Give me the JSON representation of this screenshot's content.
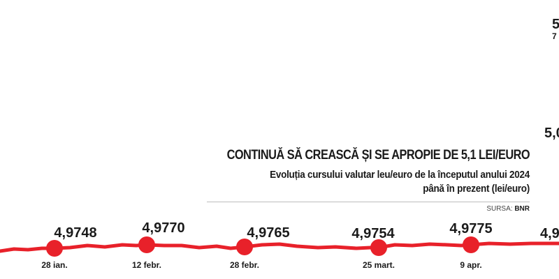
{
  "chart_data": {
    "type": "line",
    "title": "CONTINUĂ SĂ CREASCĂ ȘI SE APROPIE DE 5,1 LEI/EURO",
    "subtitle_line1": "Evoluția cursului valutar leu/euro de la începutul anului 2024",
    "subtitle_line2": "până în prezent (lei/euro)",
    "source_label": "SURSA:",
    "source_name": "BNR",
    "series_color": "#e8212a",
    "points": [
      {
        "date": "28 ian.",
        "value": 4.9748,
        "label": "4,9748"
      },
      {
        "date": "12 febr.",
        "value": 4.977,
        "label": "4,9770"
      },
      {
        "date": "28 febr.",
        "value": 4.9765,
        "label": "4,9765"
      },
      {
        "date": "25 mart.",
        "value": 4.9754,
        "label": "4,9754"
      },
      {
        "date": "9 apr.",
        "value": 4.9775,
        "label": "4,9775"
      }
    ],
    "partial_labels": [
      "4,9",
      "5,0",
      "5",
      "7"
    ]
  }
}
